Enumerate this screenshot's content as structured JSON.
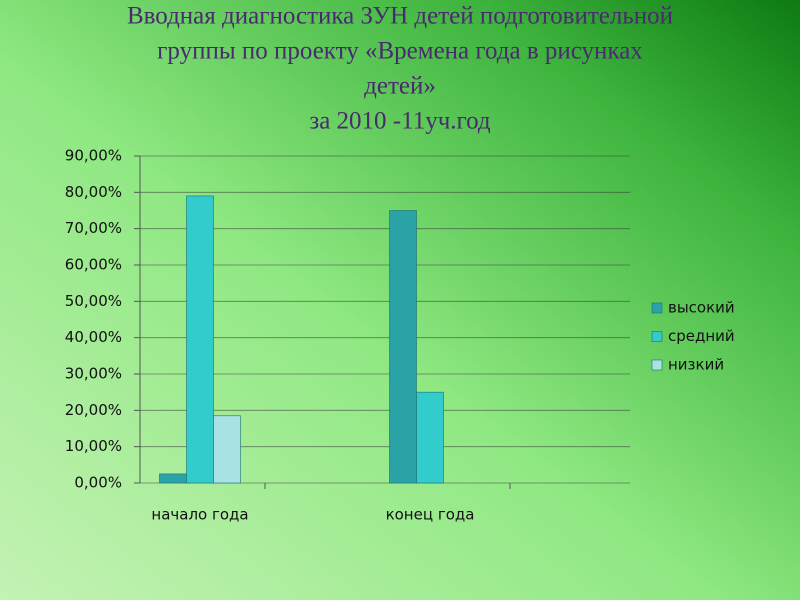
{
  "chart_data": {
    "type": "bar",
    "title": [
      "Вводная диагностика  ЗУН детей подготовительной",
      "группы по  проекту «Времена года в рисунках",
      "детей»",
      "за 2010 -11уч.год"
    ],
    "categories": [
      "начало года",
      "конец года"
    ],
    "series": [
      {
        "name": "высокий",
        "color": "#2aa3a6",
        "values": [
          2.5,
          75
        ]
      },
      {
        "name": "средний",
        "color": "#33cccc",
        "values": [
          79,
          25
        ]
      },
      {
        "name": "низкий",
        "color": "#a9e2e2",
        "values": [
          18.5,
          0
        ]
      }
    ],
    "ylim": [
      0,
      90
    ],
    "yticks": [
      {
        "value": 0,
        "label": "0,00%"
      },
      {
        "value": 10,
        "label": "10,00%"
      },
      {
        "value": 20,
        "label": "20,00%"
      },
      {
        "value": 30,
        "label": "30,00%"
      },
      {
        "value": 40,
        "label": "40,00%"
      },
      {
        "value": 50,
        "label": "50,00%"
      },
      {
        "value": 60,
        "label": "60,00%"
      },
      {
        "value": 70,
        "label": "70,00%"
      },
      {
        "value": 80,
        "label": "80,00%"
      },
      {
        "value": 90,
        "label": "90,00%"
      }
    ],
    "grid": true,
    "legend": "right"
  }
}
